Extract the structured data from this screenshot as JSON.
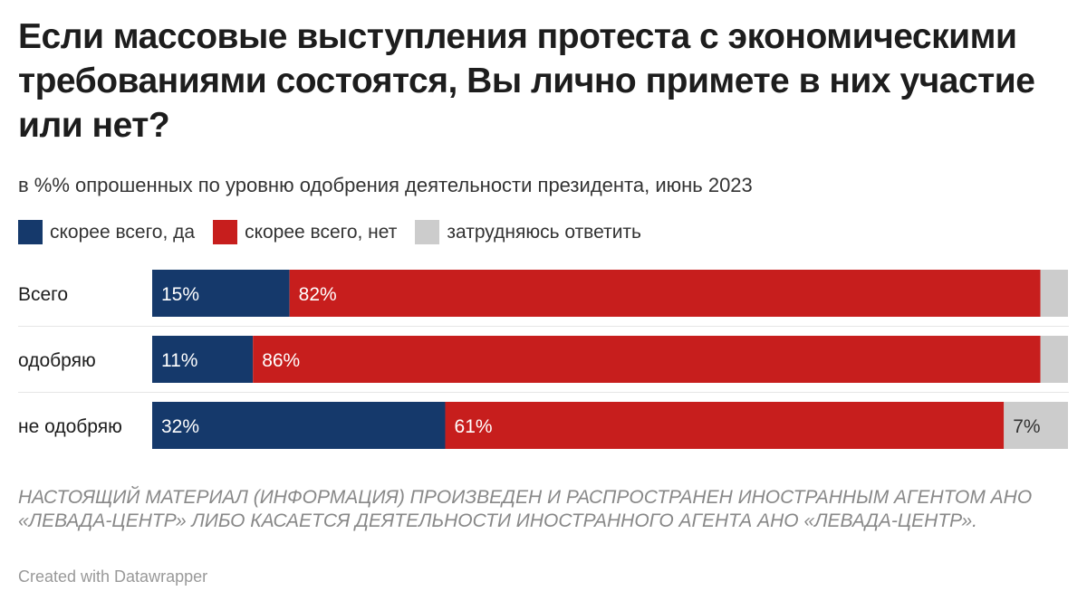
{
  "title": "Если массовые выступления протеста с экономическими требованиями состоятся, Вы лично примете в них участие или нет?",
  "subtitle": "в %% опрошенных по уровню одобрения деятельности президента, июнь 2023",
  "notes": "НАСТОЯЩИЙ МАТЕРИАЛ (ИНФОРМАЦИЯ) ПРОИЗВЕДЕН И РАСПРОСТРАНЕН ИНОСТРАННЫМ АГЕНТОМ АНО «ЛЕВАДА-ЦЕНТР» ЛИБО КАСАЕТСЯ ДЕЯТЕЛЬНОСТИ ИНОСТРАННОГО АГЕНТА АНО «ЛЕВАДА-ЦЕНТР».",
  "credit": "Created with Datawrapper",
  "chart_data": {
    "type": "bar",
    "orientation": "horizontal",
    "stacked": true,
    "categories": [
      "Всего",
      "одобряю",
      "не одобряю"
    ],
    "series": [
      {
        "name": "скорее всего, да",
        "color": "#15396b",
        "values": [
          15,
          11,
          32
        ],
        "labels": [
          "15%",
          "11%",
          "32%"
        ]
      },
      {
        "name": "скорее всего, нет",
        "color": "#c71e1d",
        "values": [
          82,
          86,
          61
        ],
        "labels": [
          "82%",
          "86%",
          "61%"
        ]
      },
      {
        "name": "затрудняюсь ответить",
        "color": "#cccccc",
        "values": [
          3,
          3,
          7
        ],
        "labels": [
          "",
          "",
          "7%"
        ]
      }
    ],
    "xlim": [
      0,
      100
    ],
    "legend": "top-left",
    "grid": false
  }
}
